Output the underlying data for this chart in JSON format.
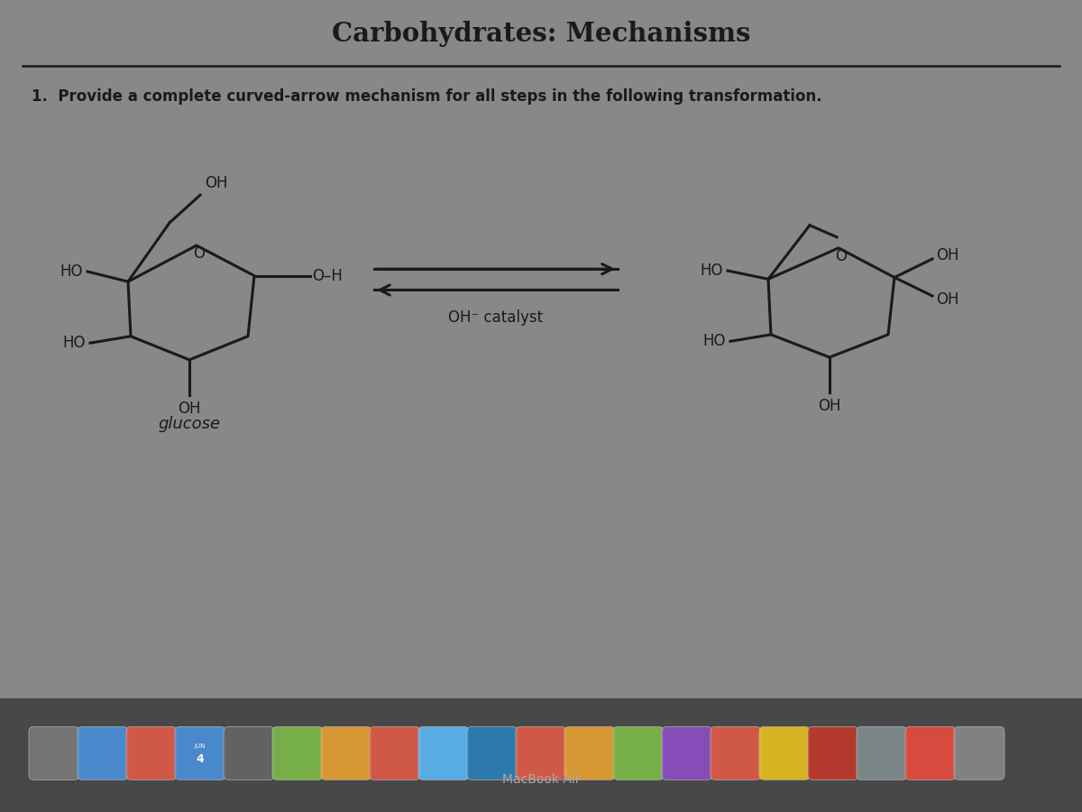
{
  "title": "Carbohydrates: Mechanisms",
  "question": "1.  Provide a complete curved-arrow mechanism for all steps in the following transformation.",
  "catalyst_label": "OH⁻ catalyst",
  "glucose_label": "glucose",
  "screen_bg": "#c8c8c8",
  "content_bg": "#e8e8e8",
  "line_color": "#1a1a1a",
  "text_color": "#1a1a1a",
  "dock_bg": "#555555",
  "macbook_text": "MacBook Air"
}
